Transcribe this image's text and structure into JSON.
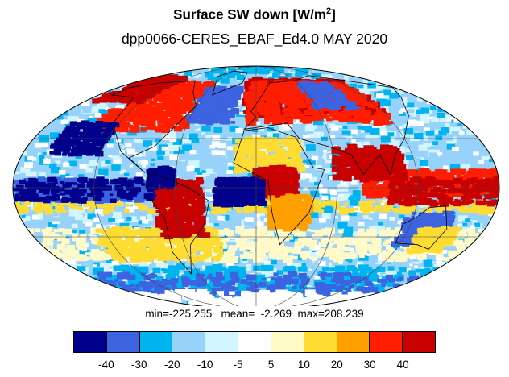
{
  "title": {
    "main": "Surface SW down [W/m",
    "superscript": "2",
    "close": "]"
  },
  "subtitle": "dpp0066-CERES_EBAF_Ed4.0  MAY 2020",
  "stats": {
    "min_label": "min=",
    "min_value": "-225.255",
    "mean_label": "mean=",
    "mean_value": "-2.269",
    "max_label": "max=",
    "max_value": "208.239"
  },
  "colorbar": {
    "colors": [
      "#00008c",
      "#3c63e0",
      "#00b4f0",
      "#96d2fa",
      "#d2f5ff",
      "#ffffff",
      "#fffac8",
      "#ffdc32",
      "#ffa000",
      "#ff1e00",
      "#c80000"
    ],
    "tick_labels": [
      "-40",
      "-30",
      "-20",
      "-10",
      "-5",
      "5",
      "10",
      "20",
      "30",
      "40"
    ]
  },
  "map": {
    "projection": "Mollweide",
    "land_outline_color": "#000000",
    "grid_color": "#444444"
  }
}
